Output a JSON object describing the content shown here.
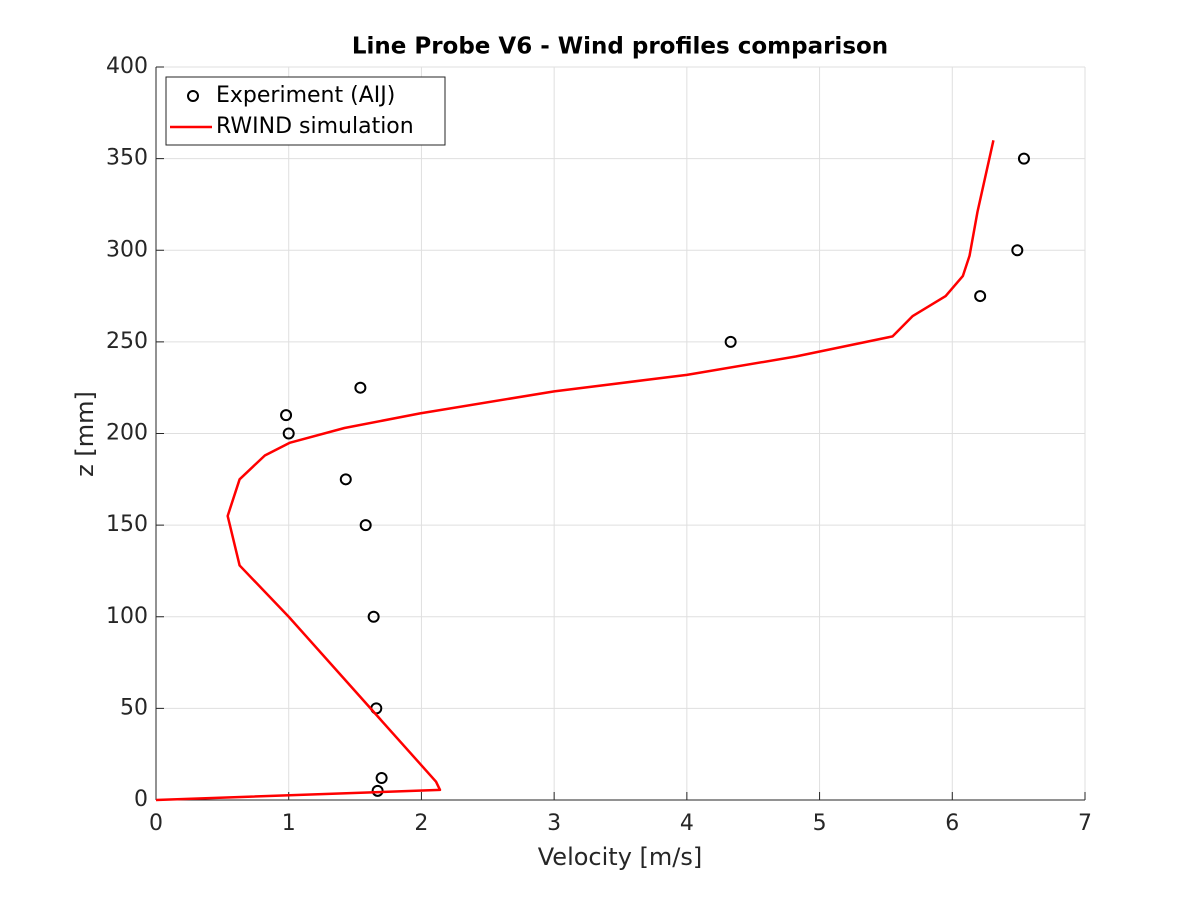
{
  "chart_data": {
    "type": "line",
    "title": "Line Probe V6 - Wind profiles comparison",
    "xlabel": "Velocity [m/s]",
    "ylabel": "z [mm]",
    "xlim": [
      0,
      7
    ],
    "ylim": [
      0,
      400
    ],
    "xticks": [
      0,
      1,
      2,
      3,
      4,
      5,
      6,
      7
    ],
    "yticks": [
      0,
      50,
      100,
      150,
      200,
      250,
      300,
      350,
      400
    ],
    "grid": true,
    "legend": "upper left",
    "series": [
      {
        "name": "Experiment (AIJ)",
        "color": "#000000",
        "marker": "circle",
        "x": [
          1.67,
          1.7,
          1.66,
          1.64,
          1.58,
          1.43,
          1.0,
          0.98,
          1.54,
          4.33,
          6.21,
          6.49,
          6.54
        ],
        "values": [
          5,
          12,
          50,
          100,
          150,
          175,
          200,
          210,
          225,
          250,
          275,
          300,
          350
        ]
      },
      {
        "name": "RWIND simulation",
        "color": "#ff0000",
        "x": [
          0,
          2.14,
          2.11,
          1.0,
          0.63,
          0.54,
          0.63,
          0.82,
          1.01,
          1.42,
          1.99,
          3.0,
          4.0,
          4.82,
          5.55,
          5.7,
          5.95,
          6.08,
          6.13,
          6.19,
          6.31
        ],
        "values": [
          0,
          5.5,
          10,
          100,
          128,
          155,
          175,
          188,
          195,
          203,
          211,
          223,
          232,
          242,
          253,
          264,
          275,
          286,
          297,
          321,
          360
        ]
      }
    ]
  }
}
